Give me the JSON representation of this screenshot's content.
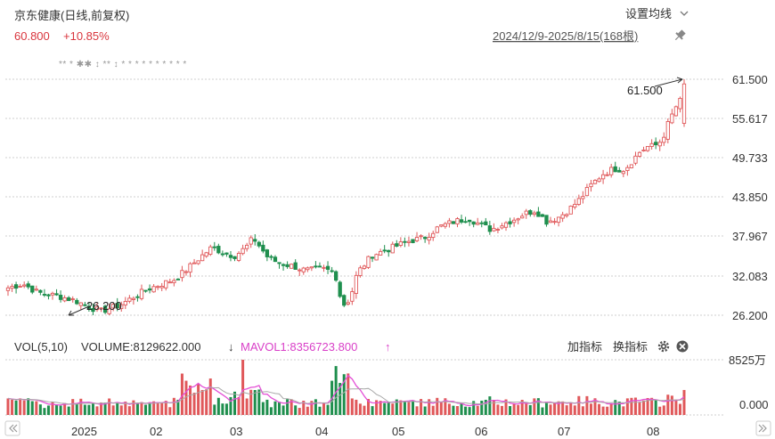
{
  "header": {
    "title": "京东健康(日线,前复权)",
    "price": "60.800",
    "change": "+10.85%",
    "settings_label": "设置均线",
    "range_label": "2024/12/9-2025/8/15(168根)"
  },
  "volume_header": {
    "vol_label": "VOL(5,10)",
    "volume_text": "VOLUME:8129622.000",
    "volume_arrow": "↓",
    "mavol_text": "MAVOL1:8356723.800",
    "mavol_arrow": "↑",
    "add_indicator": "加指标",
    "switch_indicator": "换指标"
  },
  "colors": {
    "up": "#e0585a",
    "down": "#1f8f4e",
    "mavol1": "#e44fd6",
    "mavol2": "#9a9a9a",
    "price_text": "#d9363e",
    "mavol_text": "#d940c8"
  },
  "chart_data": {
    "type": "candlestick",
    "y_ticks": [
      "61.500",
      "55.617",
      "49.733",
      "43.850",
      "37.967",
      "32.083",
      "26.200"
    ],
    "ylim": [
      26.2,
      61.5
    ],
    "vol_ticks": [
      "8525万",
      "0.000"
    ],
    "x_ticks": [
      "2025",
      "02",
      "03",
      "04",
      "05",
      "06",
      "07",
      "08"
    ],
    "max_label": "61.500",
    "min_label": "26.200",
    "markers": "**   *   ✱✱   ↕     **    ↕ * *    *  *    * * *     * * *",
    "candles": [],
    "volume": []
  }
}
